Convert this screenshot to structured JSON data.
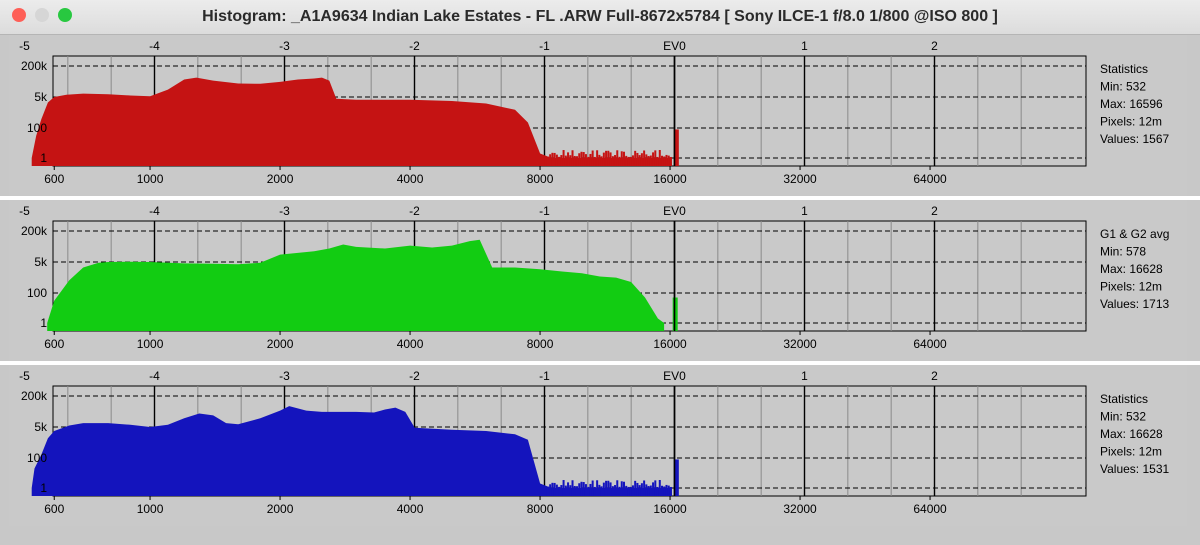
{
  "window": {
    "title": "Histogram: _A1A9634 Indian Lake Estates - FL .ARW Full-8672x5784 [ Sony ILCE-1 f/8.0 1/800 @ISO 800 ]",
    "buttons": [
      {
        "name": "close",
        "color": "#fe5f57"
      },
      {
        "name": "minimize",
        "color": "#d6d6d6"
      },
      {
        "name": "zoom",
        "color": "#28c840"
      }
    ]
  },
  "axes": {
    "ev_ticks": [
      "-5",
      "-4",
      "-3",
      "-2",
      "-1",
      "EV0",
      "1",
      "2"
    ],
    "value_ticks": [
      "600",
      "1000",
      "2000",
      "4000",
      "8000",
      "16000",
      "32000",
      "64000"
    ],
    "count_ticks": [
      "200k",
      "5k",
      "100",
      "1"
    ]
  },
  "panels": [
    {
      "channel": "red",
      "color": "#c51313",
      "stats": {
        "header": "Statistics",
        "min": "Min: 532",
        "max": "Max: 16596",
        "pixels": "Pixels: 12m",
        "values": "Values: 1567"
      }
    },
    {
      "channel": "green",
      "color": "#12cc12",
      "stats": {
        "header": "G1 & G2 avg",
        "min": "Min: 578",
        "max": "Max: 16628",
        "pixels": "Pixels: 12m",
        "values": "Values: 1713"
      }
    },
    {
      "channel": "blue",
      "color": "#1414bd",
      "stats": {
        "header": "Statistics",
        "min": "Min: 532",
        "max": "Max: 16628",
        "pixels": "Pixels: 12m",
        "values": "Values: 1531"
      }
    }
  ],
  "chart_data": [
    {
      "type": "area",
      "name": "red",
      "xscale": "log2",
      "ylim": [
        "1",
        "200k"
      ],
      "points": [
        [
          532,
          1
        ],
        [
          545,
          30
        ],
        [
          560,
          300
        ],
        [
          580,
          2500
        ],
        [
          600,
          5000
        ],
        [
          640,
          6500
        ],
        [
          700,
          7500
        ],
        [
          800,
          7000
        ],
        [
          900,
          6000
        ],
        [
          1000,
          5500
        ],
        [
          1100,
          12000
        ],
        [
          1200,
          40000
        ],
        [
          1280,
          50000
        ],
        [
          1400,
          35000
        ],
        [
          1600,
          25000
        ],
        [
          1800,
          24000
        ],
        [
          2000,
          30000
        ],
        [
          2200,
          40000
        ],
        [
          2400,
          45000
        ],
        [
          2500,
          50000
        ],
        [
          2600,
          35000
        ],
        [
          2700,
          4000
        ],
        [
          3000,
          3500
        ],
        [
          4000,
          3500
        ],
        [
          5000,
          3000
        ],
        [
          6000,
          2200
        ],
        [
          7000,
          1000
        ],
        [
          7500,
          200
        ],
        [
          8000,
          2
        ],
        [
          8500,
          1
        ],
        [
          16000,
          1
        ]
      ],
      "spike": [
        16500,
        80
      ]
    },
    {
      "type": "area",
      "name": "green",
      "xscale": "log2",
      "ylim": [
        "1",
        "200k"
      ],
      "points": [
        [
          578,
          1
        ],
        [
          600,
          30
        ],
        [
          650,
          500
        ],
        [
          700,
          2500
        ],
        [
          760,
          4500
        ],
        [
          800,
          5000
        ],
        [
          900,
          5200
        ],
        [
          1000,
          5000
        ],
        [
          1200,
          4200
        ],
        [
          1400,
          4000
        ],
        [
          1600,
          3800
        ],
        [
          1800,
          4500
        ],
        [
          2000,
          12000
        ],
        [
          2400,
          18000
        ],
        [
          2600,
          25000
        ],
        [
          2800,
          40000
        ],
        [
          3000,
          30000
        ],
        [
          3500,
          25000
        ],
        [
          4000,
          35000
        ],
        [
          4500,
          28000
        ],
        [
          5000,
          35000
        ],
        [
          5500,
          60000
        ],
        [
          5800,
          70000
        ],
        [
          6200,
          2500
        ],
        [
          7000,
          2500
        ],
        [
          8000,
          2000
        ],
        [
          9000,
          1500
        ],
        [
          10000,
          1200
        ],
        [
          11000,
          800
        ],
        [
          12000,
          700
        ],
        [
          13000,
          400
        ],
        [
          14000,
          50
        ],
        [
          15000,
          2
        ],
        [
          15500,
          1
        ]
      ],
      "spike": [
        16400,
        50
      ]
    },
    {
      "type": "area",
      "name": "blue",
      "xscale": "log2",
      "ylim": [
        "1",
        "200k"
      ],
      "points": [
        [
          532,
          1
        ],
        [
          540,
          20
        ],
        [
          560,
          150
        ],
        [
          580,
          1200
        ],
        [
          600,
          3000
        ],
        [
          650,
          6000
        ],
        [
          700,
          8000
        ],
        [
          800,
          8000
        ],
        [
          900,
          6500
        ],
        [
          1000,
          5000
        ],
        [
          1100,
          6500
        ],
        [
          1200,
          14000
        ],
        [
          1300,
          25000
        ],
        [
          1400,
          20000
        ],
        [
          1500,
          8000
        ],
        [
          1600,
          7000
        ],
        [
          1800,
          14000
        ],
        [
          2000,
          35000
        ],
        [
          2100,
          60000
        ],
        [
          2300,
          35000
        ],
        [
          2500,
          30000
        ],
        [
          3000,
          30000
        ],
        [
          3300,
          28000
        ],
        [
          3500,
          40000
        ],
        [
          3700,
          50000
        ],
        [
          3900,
          30000
        ],
        [
          4100,
          4500
        ],
        [
          5000,
          3500
        ],
        [
          6000,
          3000
        ],
        [
          7000,
          2000
        ],
        [
          7500,
          1000
        ],
        [
          8000,
          2
        ],
        [
          8500,
          1
        ],
        [
          16000,
          1
        ]
      ],
      "spike": [
        16500,
        80
      ]
    }
  ]
}
